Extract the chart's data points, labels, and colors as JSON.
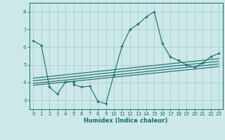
{
  "xlabel": "Humidex (Indice chaleur)",
  "bg_color": "#cde8e8",
  "line_color": "#1a6b6b",
  "grid_color": "#aacece",
  "xlim": [
    -0.5,
    23.5
  ],
  "ylim": [
    2.5,
    8.5
  ],
  "xticks": [
    0,
    1,
    2,
    3,
    4,
    5,
    6,
    7,
    8,
    9,
    10,
    11,
    12,
    13,
    14,
    15,
    16,
    17,
    18,
    19,
    20,
    21,
    22,
    23
  ],
  "yticks": [
    3,
    4,
    5,
    6,
    7,
    8
  ],
  "lines": [
    {
      "x": [
        0,
        1,
        2,
        3,
        4,
        5,
        5,
        6,
        7,
        8,
        9,
        10,
        11,
        12,
        13,
        14,
        15,
        16,
        17,
        18,
        19,
        20,
        21,
        22,
        23
      ],
      "y": [
        6.35,
        6.1,
        3.75,
        3.35,
        4.05,
        4.05,
        3.9,
        3.75,
        3.8,
        2.95,
        2.8,
        4.45,
        6.05,
        7.0,
        7.3,
        7.7,
        8.0,
        6.2,
        5.45,
        5.25,
        5.0,
        4.85,
        5.1,
        5.45,
        5.65
      ],
      "marker": true
    },
    {
      "x": [
        0,
        23
      ],
      "y": [
        3.85,
        4.9
      ],
      "marker": false
    },
    {
      "x": [
        0,
        23
      ],
      "y": [
        3.95,
        5.05
      ],
      "marker": false
    },
    {
      "x": [
        0,
        23
      ],
      "y": [
        4.1,
        5.2
      ],
      "marker": false
    },
    {
      "x": [
        0,
        23
      ],
      "y": [
        4.25,
        5.35
      ],
      "marker": false
    }
  ]
}
